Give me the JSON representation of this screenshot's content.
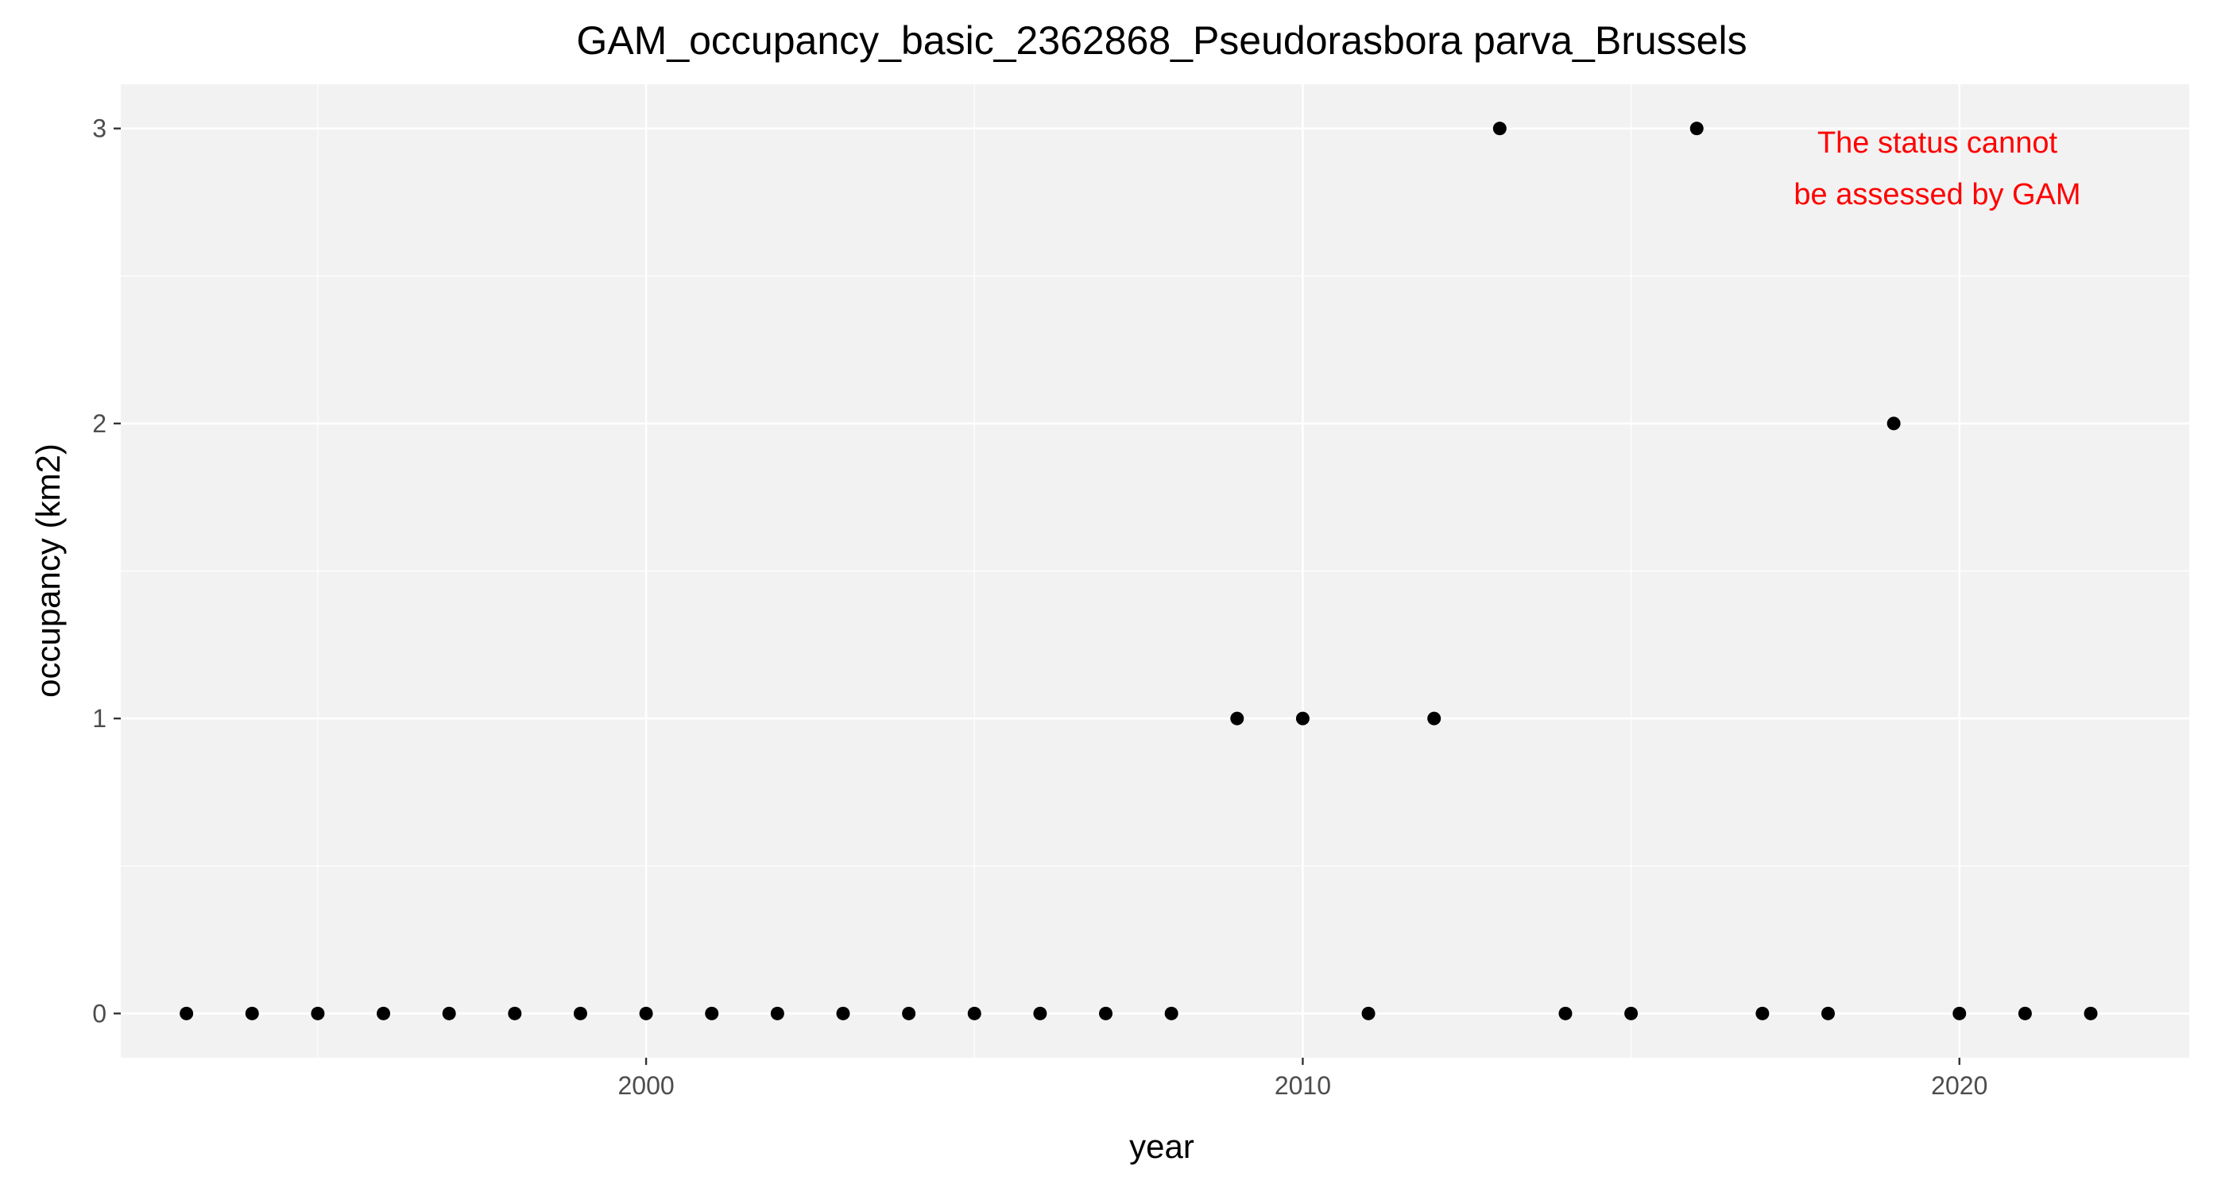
{
  "chart_data": {
    "type": "scatter",
    "title": "GAM_occupancy_basic_2362868_Pseudorasbora parva_Brussels",
    "xlabel": "year",
    "ylabel": "occupancy (km2)",
    "xlim": [
      1992,
      2023.5
    ],
    "ylim": [
      -0.15,
      3.15
    ],
    "x_ticks": [
      2000,
      2010,
      2020
    ],
    "x_tick_labels": [
      "2000",
      "2010",
      "2020"
    ],
    "y_ticks": [
      0,
      1,
      2,
      3
    ],
    "y_tick_labels": [
      "0",
      "1",
      "2",
      "3"
    ],
    "grid": true,
    "background_color": "#f2f2f2",
    "grid_color": "#ffffff",
    "point_color": "#000000",
    "annotation": {
      "lines": [
        "The status cannot",
        "be assessed by GAM"
      ],
      "color": "#ff0000",
      "position": "top-right"
    },
    "series": [
      {
        "x": [
          1993,
          1994,
          1995,
          1996,
          1997,
          1998,
          1999,
          2000,
          2001,
          2002,
          2003,
          2004,
          2005,
          2006,
          2007,
          2008,
          2009,
          2010,
          2011,
          2012,
          2013,
          2014,
          2015,
          2016,
          2017,
          2018,
          2019,
          2020,
          2021,
          2022
        ],
        "y": [
          0,
          0,
          0,
          0,
          0,
          0,
          0,
          0,
          0,
          0,
          0,
          0,
          0,
          0,
          0,
          0,
          1,
          1,
          0,
          1,
          3,
          0,
          0,
          3,
          0,
          0,
          2,
          0,
          0,
          0
        ]
      }
    ]
  }
}
